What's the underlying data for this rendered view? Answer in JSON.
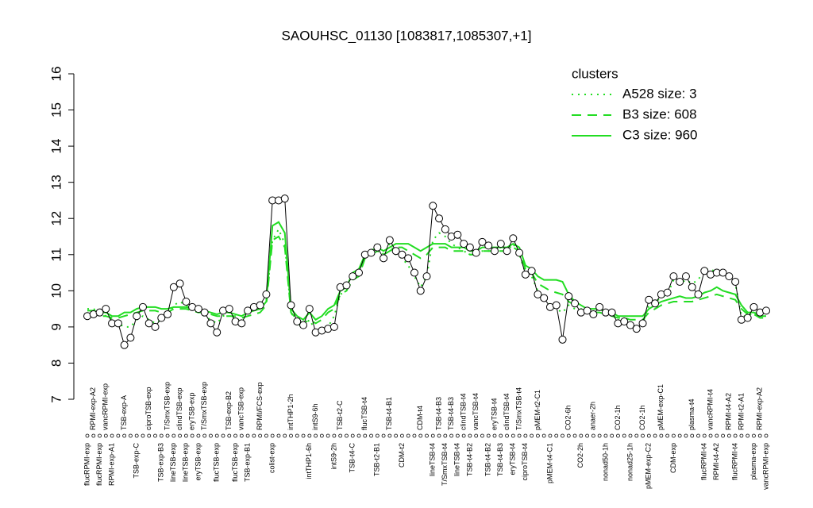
{
  "chart_data": {
    "type": "line",
    "title": "SAOUHSC_01130 [1083817,1085307,+1]",
    "categories": [
      "flucRPMI-exp",
      "RPMI-exp-A2",
      "flucRPMI-exp",
      "vancRPMI-exp",
      "RPMI-exp-A1",
      null,
      "TSB-exp-A",
      null,
      "TSB-exp-C",
      null,
      "ciproTSB-exp",
      null,
      "TSB-exp-B3",
      "T/SmxTSB-exp",
      "lineTSB-exp",
      "clindTSB-exp",
      "lineTSB-exp",
      "eryTSB-exp",
      "eryTSB-exp",
      "T/SmxTSB-exp",
      null,
      "flucTSB-exp",
      null,
      "TSB-exp-B2",
      "flucTSB-exp",
      "vancTSB-exp",
      "TSB-exp-B1",
      null,
      "RPMI/FCS-exp",
      null,
      "colist-exp",
      null,
      null,
      "intTHP1-2h",
      null,
      null,
      "intTHP1-6h",
      "intS9-6h",
      null,
      null,
      "intS9-2h",
      "TSB-t2-C",
      null,
      "TSB-t4-C",
      null,
      "flucTSB-t4",
      null,
      "TSB-t2-B1",
      null,
      "TSB-t4-B1",
      null,
      "CDM-t2",
      null,
      null,
      "CDM-t4",
      null,
      "lineTSB-t4",
      "TSB-t4-B3",
      "T/SmxTSB-t4",
      "TSB-t4-B3",
      "lineTSB-t4",
      "clindTSB-t4",
      "TSB-t4-B2",
      "vancTSB-t4",
      null,
      "TSB-t4-B2",
      "eryTSB-t4",
      "TSB-t4-B3",
      "clindTSB-t4",
      "eryTSB-t4",
      "T/SmxTSB-t4",
      "ciproTSB-t4",
      null,
      "pMEM-t2-C1",
      null,
      "pMEM-t4-C1",
      null,
      null,
      "CO2-6h",
      null,
      "CO2-2h",
      null,
      "anaer-2h",
      null,
      "nonad50-1h",
      null,
      "CO2-1h",
      null,
      "nonad25-1h",
      null,
      "CO2-1h",
      "pMEM-exp-C2",
      null,
      "pMEM-exp-C1",
      null,
      "CDM-exp",
      null,
      null,
      "plasma-t4",
      null,
      "flucRPMI-t4",
      "vancRPMI-t4",
      "RPMI-t4-A2",
      null,
      "RPMI-t4-A2",
      "flucRPMI-t4",
      "RPMI-t2-A1",
      null,
      "plasma-exp",
      "RPMI-exp-A2",
      "vancRPMI-exp"
    ],
    "values": [
      9.3,
      9.35,
      9.4,
      9.5,
      9.1,
      9.1,
      8.5,
      8.7,
      9.3,
      9.55,
      9.1,
      9.0,
      9.25,
      9.35,
      10.1,
      10.2,
      9.7,
      9.55,
      9.5,
      9.4,
      9.1,
      8.85,
      9.45,
      9.5,
      9.15,
      9.1,
      9.45,
      9.55,
      9.6,
      9.9,
      12.5,
      12.5,
      12.55,
      9.6,
      9.15,
      9.05,
      9.5,
      8.85,
      8.9,
      8.95,
      9.0,
      10.1,
      10.15,
      10.4,
      10.5,
      11.0,
      11.05,
      11.2,
      10.9,
      11.4,
      11.1,
      11.0,
      10.9,
      10.5,
      10.0,
      10.4,
      12.35,
      12.0,
      11.7,
      11.5,
      11.55,
      11.3,
      11.2,
      11.05,
      11.35,
      11.25,
      11.1,
      11.3,
      11.1,
      11.45,
      11.05,
      10.45,
      10.55,
      9.9,
      9.8,
      9.55,
      9.6,
      8.65,
      9.85,
      9.65,
      9.4,
      9.45,
      9.35,
      9.55,
      9.4,
      9.4,
      9.1,
      9.15,
      9.05,
      8.95,
      9.1,
      9.75,
      9.65,
      9.9,
      9.95,
      10.4,
      10.25,
      10.4,
      10.1,
      9.9,
      10.55,
      10.45,
      10.5,
      10.5,
      10.4,
      10.25,
      9.2,
      9.25,
      9.55,
      9.4,
      9.45
    ],
    "color": "#000000",
    "legend_title": "clusters",
    "legend_position": "top-right",
    "series": [
      {
        "name": "A528 size: 3",
        "color": "#22dd22",
        "style": "dotted",
        "values": [
          9.5,
          9.5,
          9.4,
          9.3,
          9.2,
          9.1,
          9.0,
          9.0,
          9.2,
          9.3,
          9.2,
          9.1,
          9.2,
          9.3,
          9.6,
          9.7,
          9.6,
          9.5,
          9.4,
          9.3,
          9.2,
          9.1,
          9.3,
          9.4,
          9.2,
          9.2,
          9.4,
          9.5,
          9.5,
          9.7,
          11.4,
          11.7,
          11.3,
          9.4,
          9.1,
          9.0,
          9.2,
          8.9,
          8.9,
          9.0,
          9.3,
          9.9,
          10.0,
          10.3,
          10.4,
          11.0,
          11.1,
          11.3,
          11.0,
          11.3,
          11.0,
          10.9,
          10.7,
          10.4,
          10.1,
          10.4,
          11.4,
          11.6,
          11.5,
          11.3,
          11.2,
          11.1,
          11.0,
          11.0,
          11.1,
          11.1,
          11.1,
          11.2,
          11.1,
          11.3,
          11.0,
          10.5,
          10.4,
          10.0,
          9.8,
          9.6,
          9.5,
          9.4,
          9.6,
          9.5,
          9.4,
          9.4,
          9.4,
          9.5,
          9.4,
          9.4,
          9.2,
          9.1,
          9.1,
          9.0,
          9.1,
          9.6,
          9.7,
          9.8,
          9.9,
          10.3,
          10.2,
          10.3,
          10.2,
          10.3,
          10.6,
          10.6,
          10.5,
          10.5,
          10.4,
          10.2,
          9.3,
          9.3,
          9.4,
          9.4,
          9.4
        ]
      },
      {
        "name": "B3 size: 608",
        "color": "#22dd22",
        "style": "dashed",
        "values": [
          9.35,
          9.35,
          9.3,
          9.3,
          9.25,
          9.25,
          9.3,
          9.35,
          9.4,
          9.45,
          9.45,
          9.45,
          9.4,
          9.4,
          9.5,
          9.5,
          9.5,
          9.45,
          9.4,
          9.4,
          9.35,
          9.3,
          9.3,
          9.3,
          9.3,
          9.25,
          9.3,
          9.35,
          9.4,
          9.6,
          11.4,
          11.5,
          11.2,
          9.4,
          9.2,
          9.1,
          9.2,
          9.1,
          9.2,
          9.4,
          9.5,
          9.9,
          10.0,
          10.3,
          10.4,
          10.9,
          11.0,
          11.1,
          11.0,
          11.1,
          11.2,
          11.2,
          11.1,
          11.0,
          10.9,
          11.0,
          11.2,
          11.2,
          11.2,
          11.1,
          11.1,
          11.1,
          11.0,
          11.0,
          11.1,
          11.1,
          11.1,
          11.1,
          11.1,
          11.2,
          11.1,
          10.6,
          10.5,
          10.2,
          10.1,
          10.0,
          9.95,
          9.9,
          9.7,
          9.6,
          9.5,
          9.4,
          9.4,
          9.4,
          9.35,
          9.3,
          9.25,
          9.25,
          9.2,
          9.2,
          9.2,
          9.4,
          9.5,
          9.6,
          9.65,
          9.7,
          9.7,
          9.7,
          9.7,
          9.75,
          9.8,
          9.85,
          9.9,
          9.85,
          9.8,
          9.75,
          9.5,
          9.35,
          9.35,
          9.25,
          9.25
        ]
      },
      {
        "name": "C3 size: 960",
        "color": "#22dd22",
        "style": "solid",
        "values": [
          9.45,
          9.45,
          9.4,
          9.4,
          9.3,
          9.3,
          9.4,
          9.4,
          9.5,
          9.55,
          9.55,
          9.55,
          9.5,
          9.5,
          9.55,
          9.55,
          9.55,
          9.5,
          9.5,
          9.45,
          9.4,
          9.35,
          9.4,
          9.4,
          9.35,
          9.3,
          9.4,
          9.45,
          9.5,
          9.7,
          11.8,
          11.9,
          11.6,
          9.5,
          9.3,
          9.2,
          9.4,
          9.2,
          9.3,
          9.5,
          9.6,
          10.0,
          10.1,
          10.5,
          10.6,
          11.0,
          11.1,
          11.2,
          11.1,
          11.2,
          11.3,
          11.3,
          11.3,
          11.2,
          11.1,
          11.2,
          11.3,
          11.3,
          11.3,
          11.2,
          11.2,
          11.2,
          11.1,
          11.1,
          11.2,
          11.2,
          11.2,
          11.2,
          11.2,
          11.3,
          11.2,
          10.7,
          10.6,
          10.4,
          10.3,
          10.3,
          10.3,
          10.25,
          9.9,
          9.7,
          9.6,
          9.5,
          9.5,
          9.5,
          9.4,
          9.4,
          9.3,
          9.3,
          9.3,
          9.3,
          9.3,
          9.5,
          9.6,
          9.7,
          9.75,
          9.8,
          9.85,
          9.8,
          9.8,
          9.85,
          9.95,
          10.0,
          10.1,
          10.0,
          9.95,
          9.9,
          9.6,
          9.4,
          9.4,
          9.3,
          9.3
        ]
      }
    ],
    "ylim": [
      7,
      16
    ],
    "yticks": [
      7,
      8,
      9,
      10,
      11,
      12,
      13,
      14,
      15,
      16
    ],
    "grid": false
  }
}
